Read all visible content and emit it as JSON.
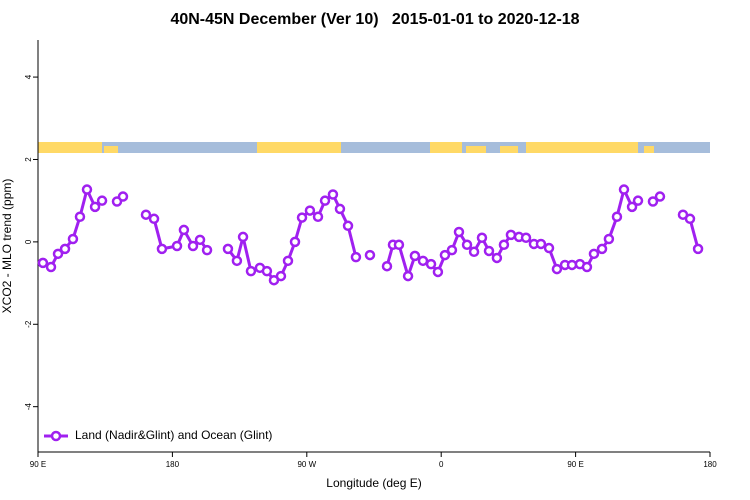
{
  "chart_data": {
    "type": "line",
    "title": "40N-45N December (Ver 10)   2015-01-01 to 2020-12-18",
    "xlabel": "Longitude (deg E)",
    "ylabel": "XCO2 - MLO trend (ppm)",
    "xlim": [
      90,
      540
    ],
    "ylim": [
      -5.1,
      4.9
    ],
    "xticks": [
      {
        "value": 90,
        "label": "90 E"
      },
      180,
      {
        "value": 270,
        "label": "90 W"
      },
      {
        "value": 360,
        "label": "0"
      },
      {
        "value": 450,
        "label": "90 E"
      },
      {
        "value": 540,
        "label": "180"
      }
    ],
    "yticks": [
      -4,
      -2,
      0,
      2,
      4
    ],
    "legend": "bottom-left",
    "x": [
      93.3,
      98.7,
      103.4,
      108.1,
      113.4,
      118.1,
      122.8,
      128.2,
      132.9,
      null,
      142.9,
      146.9,
      null,
      162.3,
      167.7,
      173.0,
      183.1,
      187.7,
      193.8,
      198.5,
      203.2,
      null,
      217.2,
      223.2,
      227.3,
      232.6,
      238.6,
      243.3,
      248.0,
      252.7,
      257.4,
      262.1,
      266.8,
      272.1,
      277.5,
      282.2,
      287.5,
      292.2,
      297.6,
      302.9,
      null,
      312.3,
      null,
      323.7,
      327.7,
      331.7,
      337.8,
      342.4,
      347.8,
      353.2,
      357.8,
      362.5,
      367.2,
      371.9,
      377.3,
      382.0,
      387.3,
      392.0,
      397.3,
      402.0,
      406.7,
      412.1,
      416.8,
      422.1,
      426.8,
      432.2,
      437.5,
      442.9,
      447.6,
      452.9,
      457.6,
      462.3,
      467.7,
      472.3,
      477.7,
      482.4,
      487.8,
      491.8,
      null,
      501.8,
      506.5,
      null,
      521.9,
      526.6,
      532.0
    ],
    "series": [
      {
        "name": "Land (Nadir&Glint) and Ocean (Glint)",
        "color": "#a020f0",
        "values": [
          -0.51,
          -0.61,
          -0.29,
          -0.17,
          0.07,
          0.61,
          1.27,
          0.85,
          1.0,
          null,
          0.98,
          1.1,
          null,
          0.66,
          0.56,
          -0.17,
          -0.1,
          0.29,
          -0.1,
          0.05,
          -0.2,
          null,
          -0.17,
          -0.46,
          0.12,
          -0.71,
          -0.63,
          -0.71,
          -0.93,
          -0.83,
          -0.46,
          0,
          0.59,
          0.76,
          0.61,
          1.0,
          1.15,
          0.8,
          0.39,
          -0.37,
          null,
          -0.32,
          null,
          -0.59,
          -0.07,
          -0.07,
          -0.83,
          -0.34,
          -0.46,
          -0.54,
          -0.73,
          -0.32,
          -0.2,
          0.24,
          -0.07,
          -0.24,
          0.1,
          -0.22,
          -0.39,
          -0.07,
          0.17,
          0.12,
          0.1,
          -0.05,
          -0.05,
          -0.15,
          -0.66,
          -0.56,
          -0.56,
          -0.54,
          -0.61,
          -0.29,
          -0.17,
          0.07,
          0.61,
          1.27,
          0.85,
          1.0,
          null,
          0.98,
          1.1,
          null,
          0.66,
          0.56,
          -0.17
        ]
      }
    ]
  }
}
